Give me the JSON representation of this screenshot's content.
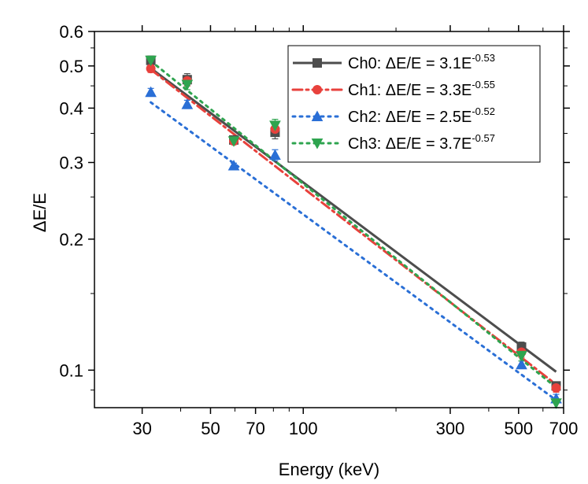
{
  "chart_data": {
    "type": "scatter",
    "xlabel": "Energy (keV)",
    "ylabel": "ΔE/E",
    "xscale": "log",
    "yscale": "log",
    "xlim": [
      21,
      700
    ],
    "ylim": [
      0.082,
      0.6
    ],
    "xticks": [
      30,
      50,
      70,
      100,
      300,
      500,
      700
    ],
    "xtick_labels": [
      "30",
      "50",
      "70",
      "100",
      "300",
      "500",
      "700"
    ],
    "yticks": [
      0.1,
      0.2,
      0.3,
      0.4,
      0.5,
      0.6
    ],
    "ytick_labels": [
      "0.1",
      "0.2",
      "0.3",
      "0.4",
      "0.5",
      "0.6"
    ],
    "grid": false,
    "legend_position": "top-right",
    "series": [
      {
        "name": "Ch0",
        "legend_prefix": "Ch0: ΔE/E = 3.1E",
        "legend_exponent": "-0.53",
        "color": "#4d4d4d",
        "marker": "square",
        "line_style": "solid",
        "fit": {
          "a": 3.1,
          "b": -0.53
        },
        "x": [
          32,
          42,
          59.5,
          81,
          511,
          662
        ],
        "y": [
          0.515,
          0.465,
          0.338,
          0.352,
          0.113,
          0.092
        ],
        "err": [
          0.012,
          0.015,
          0.006,
          0.012,
          0.003,
          0.002
        ]
      },
      {
        "name": "Ch1",
        "legend_prefix": "Ch1: ΔE/E = 3.3E",
        "legend_exponent": "-0.55",
        "color": "#e8413c",
        "marker": "circle",
        "line_style": "dashdot",
        "fit": {
          "a": 3.3,
          "b": -0.55
        },
        "x": [
          32,
          42,
          59.5,
          81,
          511,
          662
        ],
        "y": [
          0.493,
          0.462,
          0.336,
          0.358,
          0.11,
          0.091
        ],
        "err": [
          0.01,
          0.012,
          0.006,
          0.01,
          0.003,
          0.002
        ]
      },
      {
        "name": "Ch2",
        "legend_prefix": "Ch2: ΔE/E = 2.5E",
        "legend_exponent": "-0.52",
        "color": "#2a6fd6",
        "marker": "triangle-up",
        "line_style": "dotted",
        "fit": {
          "a": 2.5,
          "b": -0.52
        },
        "x": [
          32,
          42,
          59.5,
          81,
          511,
          662
        ],
        "y": [
          0.435,
          0.408,
          0.295,
          0.312,
          0.103,
          0.086
        ],
        "err": [
          0.009,
          0.009,
          0.004,
          0.009,
          0.002,
          0.002
        ]
      },
      {
        "name": "Ch3",
        "legend_prefix": "Ch3: ΔE/E = 3.7E",
        "legend_exponent": "-0.57",
        "color": "#2ea44f",
        "marker": "triangle-down",
        "line_style": "dotted",
        "fit": {
          "a": 3.7,
          "b": -0.57
        },
        "x": [
          32,
          42,
          59.5,
          81,
          511,
          662
        ],
        "y": [
          0.515,
          0.453,
          0.336,
          0.365,
          0.108,
          0.084
        ],
        "err": [
          0.01,
          0.012,
          0.005,
          0.012,
          0.003,
          0.002
        ]
      }
    ]
  }
}
